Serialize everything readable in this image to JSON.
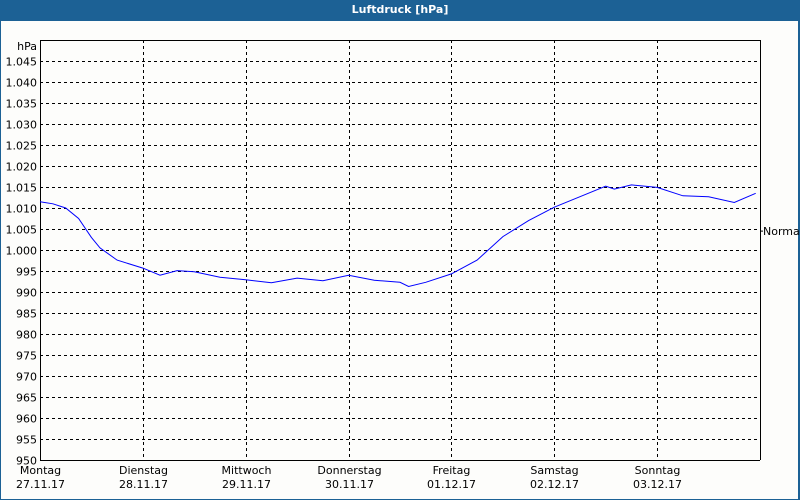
{
  "window": {
    "title": "Luftdruck [hPa]"
  },
  "chart_data": {
    "type": "line",
    "title": "Luftdruck [hPa]",
    "ylabel": "hPa",
    "ylim": [
      950,
      1050
    ],
    "yticks": [
      950,
      955,
      960,
      965,
      970,
      975,
      980,
      985,
      990,
      995,
      1000,
      1005,
      1010,
      1015,
      1020,
      1025,
      1030,
      1035,
      1040,
      1045
    ],
    "ytick_labels": [
      "950",
      "955",
      "960",
      "965",
      "970",
      "975",
      "980",
      "985",
      "990",
      "995",
      "1.000",
      "1.005",
      "1.010",
      "1.015",
      "1.020",
      "1.025",
      "1.030",
      "1.035",
      "1.040",
      "1.045"
    ],
    "xlim": [
      "2017-11-27T00:00",
      "2017-12-04T00:00"
    ],
    "xticks": [
      {
        "date": "2017-11-27",
        "day": "Montag",
        "label": "27.11.17"
      },
      {
        "date": "2017-11-28",
        "day": "Dienstag",
        "label": "28.11.17"
      },
      {
        "date": "2017-11-29",
        "day": "Mittwoch",
        "label": "29.11.17"
      },
      {
        "date": "2017-11-30",
        "day": "Donnerstag",
        "label": "30.11.17"
      },
      {
        "date": "2017-12-01",
        "day": "Freitag",
        "label": "01.12.17"
      },
      {
        "date": "2017-12-02",
        "day": "Samstag",
        "label": "02.12.17"
      },
      {
        "date": "2017-12-03",
        "day": "Sonntag",
        "label": "03.12.17"
      }
    ],
    "grid": true,
    "reference": {
      "label": "Normal",
      "value": 1004.5
    },
    "line_color": "#0000ff",
    "points": [
      [
        "2017-11-27T00:00",
        1011.5
      ],
      [
        "2017-11-27T03:00",
        1011.0
      ],
      [
        "2017-11-27T06:00",
        1010.0
      ],
      [
        "2017-11-27T09:00",
        1007.5
      ],
      [
        "2017-11-27T12:00",
        1003.0
      ],
      [
        "2017-11-27T14:00",
        1000.5
      ],
      [
        "2017-11-27T18:00",
        997.6
      ],
      [
        "2017-11-28T00:00",
        995.7
      ],
      [
        "2017-11-28T04:00",
        994.0
      ],
      [
        "2017-11-28T08:00",
        995.1
      ],
      [
        "2017-11-28T12:00",
        994.8
      ],
      [
        "2017-11-28T18:00",
        993.5
      ],
      [
        "2017-11-29T00:00",
        992.9
      ],
      [
        "2017-11-29T06:00",
        992.2
      ],
      [
        "2017-11-29T12:00",
        993.3
      ],
      [
        "2017-11-29T18:00",
        992.7
      ],
      [
        "2017-11-30T00:00",
        994.0
      ],
      [
        "2017-11-30T06:00",
        992.8
      ],
      [
        "2017-11-30T12:00",
        992.3
      ],
      [
        "2017-11-30T14:00",
        991.3
      ],
      [
        "2017-11-30T18:00",
        992.3
      ],
      [
        "2017-12-01T00:00",
        994.3
      ],
      [
        "2017-12-01T06:00",
        997.6
      ],
      [
        "2017-12-01T12:00",
        1003.2
      ],
      [
        "2017-12-01T18:00",
        1007.0
      ],
      [
        "2017-12-02T00:00",
        1010.2
      ],
      [
        "2017-12-02T06:00",
        1012.7
      ],
      [
        "2017-12-02T12:00",
        1015.2
      ],
      [
        "2017-12-02T14:00",
        1014.5
      ],
      [
        "2017-12-02T18:00",
        1015.5
      ],
      [
        "2017-12-03T00:00",
        1014.9
      ],
      [
        "2017-12-03T06:00",
        1012.9
      ],
      [
        "2017-12-03T12:00",
        1012.7
      ],
      [
        "2017-12-03T18:00",
        1011.3
      ],
      [
        "2017-12-03T23:00",
        1013.5
      ]
    ]
  },
  "colors": {
    "titlebar": "#1c6195",
    "background": "#fdfdfb",
    "line": "#0000ff"
  }
}
